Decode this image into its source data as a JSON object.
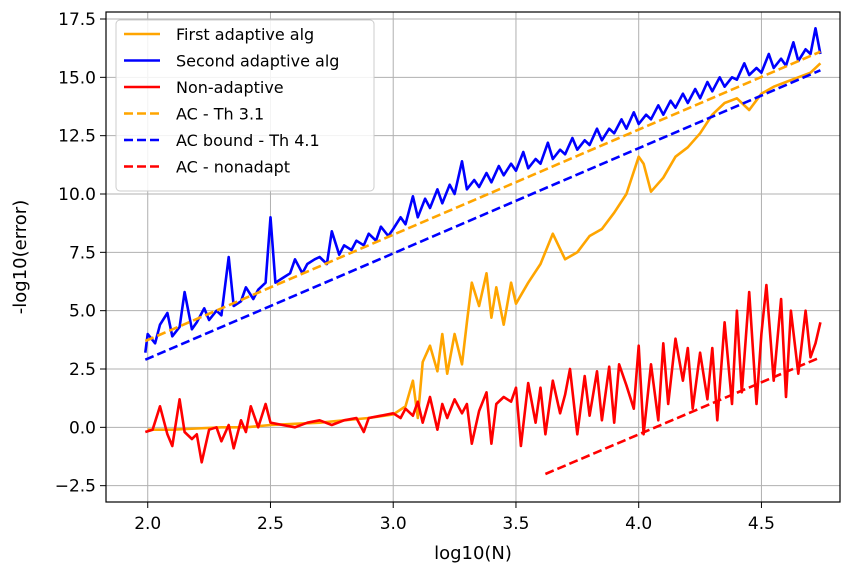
{
  "chart_data": {
    "type": "line",
    "title": "",
    "xlabel": "log10(N)",
    "ylabel": "-log10(error)",
    "xlim": [
      1.83,
      4.82
    ],
    "ylim": [
      -3.2,
      17.8
    ],
    "xticks": [
      2.0,
      2.5,
      3.0,
      3.5,
      4.0,
      4.5
    ],
    "xtick_labels": [
      "2.0",
      "2.5",
      "3.0",
      "3.5",
      "4.0",
      "4.5"
    ],
    "yticks": [
      -2.5,
      0.0,
      2.5,
      5.0,
      7.5,
      10.0,
      12.5,
      15.0,
      17.5
    ],
    "ytick_labels": [
      "−2.5",
      "0.0",
      "2.5",
      "5.0",
      "7.5",
      "10.0",
      "12.5",
      "15.0",
      "17.5"
    ],
    "grid": true,
    "legend_position": "top-left",
    "series": [
      {
        "name": "First adaptive alg",
        "color": "#FFA500",
        "style": "solid",
        "points": [
          [
            2.0,
            -0.1
          ],
          [
            2.1,
            -0.1
          ],
          [
            2.2,
            -0.05
          ],
          [
            2.3,
            0.0
          ],
          [
            2.4,
            0.0
          ],
          [
            2.5,
            0.1
          ],
          [
            2.6,
            0.15
          ],
          [
            2.7,
            0.2
          ],
          [
            2.8,
            0.3
          ],
          [
            2.9,
            0.4
          ],
          [
            3.0,
            0.55
          ],
          [
            3.05,
            0.9
          ],
          [
            3.08,
            2.0
          ],
          [
            3.1,
            0.4
          ],
          [
            3.12,
            2.8
          ],
          [
            3.15,
            3.5
          ],
          [
            3.18,
            2.4
          ],
          [
            3.2,
            4.0
          ],
          [
            3.22,
            2.3
          ],
          [
            3.25,
            4.0
          ],
          [
            3.28,
            2.7
          ],
          [
            3.3,
            4.5
          ],
          [
            3.32,
            6.2
          ],
          [
            3.35,
            5.2
          ],
          [
            3.38,
            6.6
          ],
          [
            3.4,
            4.7
          ],
          [
            3.42,
            6.0
          ],
          [
            3.45,
            4.4
          ],
          [
            3.48,
            6.2
          ],
          [
            3.5,
            5.3
          ],
          [
            3.55,
            6.2
          ],
          [
            3.6,
            7.0
          ],
          [
            3.65,
            8.3
          ],
          [
            3.7,
            7.2
          ],
          [
            3.75,
            7.5
          ],
          [
            3.8,
            8.2
          ],
          [
            3.85,
            8.5
          ],
          [
            3.9,
            9.2
          ],
          [
            3.95,
            10.0
          ],
          [
            4.0,
            11.6
          ],
          [
            4.02,
            11.3
          ],
          [
            4.05,
            10.1
          ],
          [
            4.1,
            10.7
          ],
          [
            4.15,
            11.6
          ],
          [
            4.2,
            12.0
          ],
          [
            4.25,
            12.6
          ],
          [
            4.3,
            13.4
          ],
          [
            4.35,
            13.9
          ],
          [
            4.4,
            14.1
          ],
          [
            4.45,
            13.6
          ],
          [
            4.5,
            14.3
          ],
          [
            4.55,
            14.6
          ],
          [
            4.6,
            14.8
          ],
          [
            4.65,
            15.0
          ],
          [
            4.7,
            15.2
          ],
          [
            4.74,
            15.6
          ]
        ]
      },
      {
        "name": "Second adaptive alg",
        "color": "#0000FF",
        "style": "solid",
        "points": [
          [
            1.99,
            3.2
          ],
          [
            2.0,
            4.0
          ],
          [
            2.03,
            3.6
          ],
          [
            2.05,
            4.4
          ],
          [
            2.08,
            4.9
          ],
          [
            2.1,
            3.9
          ],
          [
            2.13,
            4.3
          ],
          [
            2.15,
            5.8
          ],
          [
            2.18,
            4.2
          ],
          [
            2.2,
            4.5
          ],
          [
            2.23,
            5.1
          ],
          [
            2.25,
            4.6
          ],
          [
            2.28,
            5.0
          ],
          [
            2.3,
            4.8
          ],
          [
            2.33,
            7.3
          ],
          [
            2.35,
            5.2
          ],
          [
            2.38,
            5.4
          ],
          [
            2.4,
            6.0
          ],
          [
            2.43,
            5.5
          ],
          [
            2.45,
            5.9
          ],
          [
            2.48,
            6.2
          ],
          [
            2.5,
            9.0
          ],
          [
            2.52,
            6.2
          ],
          [
            2.55,
            6.4
          ],
          [
            2.58,
            6.6
          ],
          [
            2.6,
            7.2
          ],
          [
            2.63,
            6.6
          ],
          [
            2.65,
            7.0
          ],
          [
            2.68,
            7.2
          ],
          [
            2.7,
            7.3
          ],
          [
            2.73,
            7.0
          ],
          [
            2.75,
            8.4
          ],
          [
            2.78,
            7.4
          ],
          [
            2.8,
            7.8
          ],
          [
            2.83,
            7.6
          ],
          [
            2.85,
            8.0
          ],
          [
            2.88,
            7.8
          ],
          [
            2.9,
            8.3
          ],
          [
            2.93,
            8.0
          ],
          [
            2.95,
            8.6
          ],
          [
            2.98,
            8.2
          ],
          [
            3.0,
            8.5
          ],
          [
            3.03,
            9.0
          ],
          [
            3.05,
            8.7
          ],
          [
            3.08,
            9.9
          ],
          [
            3.1,
            9.0
          ],
          [
            3.13,
            9.8
          ],
          [
            3.15,
            9.4
          ],
          [
            3.18,
            10.2
          ],
          [
            3.2,
            9.6
          ],
          [
            3.23,
            10.4
          ],
          [
            3.25,
            10.0
          ],
          [
            3.28,
            11.4
          ],
          [
            3.3,
            10.2
          ],
          [
            3.33,
            10.6
          ],
          [
            3.35,
            10.3
          ],
          [
            3.38,
            10.9
          ],
          [
            3.4,
            10.5
          ],
          [
            3.43,
            11.2
          ],
          [
            3.45,
            10.8
          ],
          [
            3.48,
            11.3
          ],
          [
            3.5,
            11.0
          ],
          [
            3.53,
            11.8
          ],
          [
            3.55,
            11.1
          ],
          [
            3.58,
            11.5
          ],
          [
            3.6,
            11.3
          ],
          [
            3.63,
            12.2
          ],
          [
            3.65,
            11.5
          ],
          [
            3.68,
            11.9
          ],
          [
            3.7,
            11.7
          ],
          [
            3.73,
            12.4
          ],
          [
            3.75,
            11.9
          ],
          [
            3.78,
            12.3
          ],
          [
            3.8,
            12.1
          ],
          [
            3.83,
            12.8
          ],
          [
            3.85,
            12.3
          ],
          [
            3.88,
            12.8
          ],
          [
            3.9,
            12.6
          ],
          [
            3.93,
            13.2
          ],
          [
            3.95,
            12.8
          ],
          [
            3.98,
            13.5
          ],
          [
            4.0,
            13.0
          ],
          [
            4.03,
            13.4
          ],
          [
            4.05,
            13.2
          ],
          [
            4.08,
            13.8
          ],
          [
            4.1,
            13.4
          ],
          [
            4.13,
            14.0
          ],
          [
            4.15,
            13.7
          ],
          [
            4.18,
            14.3
          ],
          [
            4.2,
            13.9
          ],
          [
            4.23,
            14.5
          ],
          [
            4.25,
            14.1
          ],
          [
            4.28,
            14.8
          ],
          [
            4.3,
            14.4
          ],
          [
            4.33,
            15.0
          ],
          [
            4.35,
            14.6
          ],
          [
            4.38,
            15.0
          ],
          [
            4.4,
            14.9
          ],
          [
            4.43,
            15.6
          ],
          [
            4.45,
            15.1
          ],
          [
            4.48,
            15.4
          ],
          [
            4.5,
            15.2
          ],
          [
            4.53,
            16.0
          ],
          [
            4.55,
            15.4
          ],
          [
            4.58,
            15.8
          ],
          [
            4.6,
            15.5
          ],
          [
            4.63,
            16.5
          ],
          [
            4.65,
            15.7
          ],
          [
            4.68,
            16.2
          ],
          [
            4.7,
            16.0
          ],
          [
            4.72,
            17.1
          ],
          [
            4.74,
            16.0
          ]
        ]
      },
      {
        "name": "Non-adaptive",
        "color": "#FF0000",
        "style": "solid",
        "points": [
          [
            1.99,
            -0.2
          ],
          [
            2.02,
            -0.1
          ],
          [
            2.05,
            0.9
          ],
          [
            2.08,
            -0.3
          ],
          [
            2.1,
            -0.8
          ],
          [
            2.13,
            1.2
          ],
          [
            2.15,
            -0.2
          ],
          [
            2.18,
            -0.5
          ],
          [
            2.2,
            -0.3
          ],
          [
            2.22,
            -1.5
          ],
          [
            2.25,
            -0.1
          ],
          [
            2.28,
            0.0
          ],
          [
            2.3,
            -0.6
          ],
          [
            2.33,
            0.1
          ],
          [
            2.35,
            -0.9
          ],
          [
            2.38,
            0.3
          ],
          [
            2.4,
            -0.2
          ],
          [
            2.42,
            0.9
          ],
          [
            2.45,
            0.0
          ],
          [
            2.48,
            1.0
          ],
          [
            2.5,
            0.2
          ],
          [
            2.55,
            0.1
          ],
          [
            2.6,
            0.0
          ],
          [
            2.65,
            0.2
          ],
          [
            2.7,
            0.3
          ],
          [
            2.75,
            0.1
          ],
          [
            2.8,
            0.3
          ],
          [
            2.85,
            0.4
          ],
          [
            2.88,
            -0.2
          ],
          [
            2.9,
            0.4
          ],
          [
            2.95,
            0.5
          ],
          [
            3.0,
            0.6
          ],
          [
            3.03,
            0.4
          ],
          [
            3.05,
            0.8
          ],
          [
            3.08,
            0.5
          ],
          [
            3.1,
            1.1
          ],
          [
            3.12,
            0.2
          ],
          [
            3.15,
            1.3
          ],
          [
            3.18,
            -0.1
          ],
          [
            3.2,
            1.0
          ],
          [
            3.22,
            0.4
          ],
          [
            3.25,
            1.2
          ],
          [
            3.28,
            0.6
          ],
          [
            3.3,
            1.0
          ],
          [
            3.32,
            -0.7
          ],
          [
            3.35,
            0.7
          ],
          [
            3.38,
            1.5
          ],
          [
            3.4,
            -0.7
          ],
          [
            3.42,
            1.0
          ],
          [
            3.45,
            1.3
          ],
          [
            3.48,
            1.1
          ],
          [
            3.5,
            1.7
          ],
          [
            3.52,
            -0.8
          ],
          [
            3.55,
            1.9
          ],
          [
            3.58,
            0.2
          ],
          [
            3.6,
            1.7
          ],
          [
            3.62,
            -0.3
          ],
          [
            3.65,
            2.0
          ],
          [
            3.68,
            0.6
          ],
          [
            3.7,
            1.4
          ],
          [
            3.72,
            2.5
          ],
          [
            3.75,
            -0.3
          ],
          [
            3.78,
            2.2
          ],
          [
            3.8,
            0.5
          ],
          [
            3.83,
            2.4
          ],
          [
            3.85,
            0.3
          ],
          [
            3.88,
            2.6
          ],
          [
            3.9,
            0.2
          ],
          [
            3.92,
            2.7
          ],
          [
            3.95,
            1.8
          ],
          [
            3.98,
            0.8
          ],
          [
            4.0,
            3.5
          ],
          [
            4.02,
            -0.3
          ],
          [
            4.05,
            2.7
          ],
          [
            4.08,
            0.3
          ],
          [
            4.1,
            3.6
          ],
          [
            4.12,
            1.0
          ],
          [
            4.15,
            3.8
          ],
          [
            4.18,
            2.0
          ],
          [
            4.2,
            3.4
          ],
          [
            4.22,
            0.8
          ],
          [
            4.25,
            3.2
          ],
          [
            4.28,
            1.2
          ],
          [
            4.3,
            3.4
          ],
          [
            4.32,
            0.3
          ],
          [
            4.35,
            4.5
          ],
          [
            4.38,
            1.0
          ],
          [
            4.4,
            5.0
          ],
          [
            4.42,
            1.5
          ],
          [
            4.45,
            5.8
          ],
          [
            4.48,
            1.0
          ],
          [
            4.5,
            4.0
          ],
          [
            4.52,
            6.1
          ],
          [
            4.55,
            2.0
          ],
          [
            4.58,
            5.5
          ],
          [
            4.6,
            1.3
          ],
          [
            4.62,
            5.0
          ],
          [
            4.65,
            2.3
          ],
          [
            4.68,
            5.0
          ],
          [
            4.7,
            3.0
          ],
          [
            4.72,
            3.6
          ],
          [
            4.74,
            4.5
          ]
        ]
      },
      {
        "name": "AC - Th 3.1",
        "color": "#FFA500",
        "style": "dashed",
        "points": [
          [
            1.99,
            3.7
          ],
          [
            4.74,
            16.1
          ]
        ]
      },
      {
        "name": "AC bound - Th 4.1",
        "color": "#0000FF",
        "style": "dashed",
        "points": [
          [
            1.99,
            2.9
          ],
          [
            4.74,
            15.3
          ]
        ]
      },
      {
        "name": "AC - nonadapt",
        "color": "#FF0000",
        "style": "dashed",
        "points": [
          [
            3.62,
            -2.0
          ],
          [
            4.74,
            3.0
          ]
        ]
      }
    ]
  }
}
